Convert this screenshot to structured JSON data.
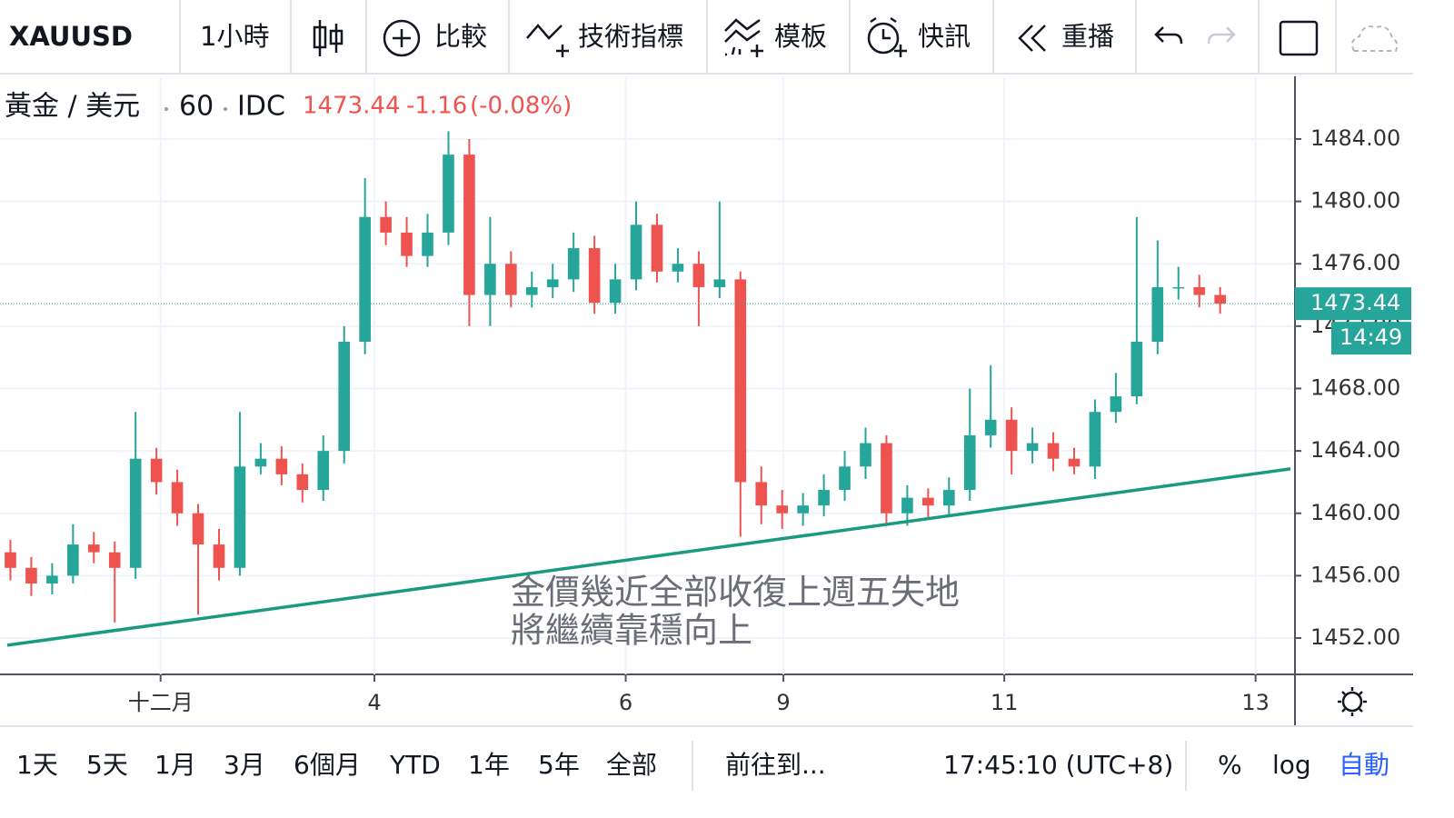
{
  "toolbar": {
    "symbol": "XAUUSD",
    "interval": "1小時",
    "buttons": [
      "比較",
      "技術指標",
      "模板",
      "快訊",
      "重播"
    ]
  },
  "chart_data": {
    "type": "candlestick",
    "title": "黃金 / 美元",
    "interval": "60",
    "exchange": "IDC",
    "last": 1473.44,
    "change": -1.16,
    "change_pct": {
      "value": -0.08,
      "label": "(-0.08%)"
    },
    "countdown": "14:49",
    "x": [
      0,
      1,
      2,
      3,
      4,
      5,
      6,
      7,
      8,
      9,
      10,
      11,
      12,
      13,
      14,
      15,
      16,
      17,
      18,
      19,
      20,
      21,
      22,
      23,
      24,
      25,
      26,
      27,
      28,
      29,
      30,
      31,
      32,
      33,
      34,
      35,
      36,
      37,
      38,
      39,
      40,
      41,
      42,
      43,
      44,
      45,
      46,
      47,
      48,
      49,
      50,
      51,
      52,
      53,
      54,
      55,
      56,
      57,
      58
    ],
    "open": [
      1457.5,
      1456.5,
      1455.5,
      1456,
      1458,
      1457.5,
      1456.5,
      1463.5,
      1462,
      1460,
      1458,
      1456.5,
      1463,
      1463.5,
      1462.5,
      1461.5,
      1464,
      1471,
      1479,
      1478,
      1476.5,
      1478,
      1483,
      1474,
      1476,
      1474,
      1474.5,
      1475,
      1477,
      1473.5,
      1475,
      1478.5,
      1475.5,
      1476,
      1474.5,
      1475,
      1462,
      1460.5,
      1460,
      1460.5,
      1461.5,
      1463,
      1464.5,
      1460,
      1461,
      1460.5,
      1461.5,
      1465,
      1466,
      1464,
      1464.5,
      1463.5,
      1463,
      1466.5,
      1467.5,
      1471,
      1474.5,
      1474.5,
      1474
    ],
    "high": [
      1458.3,
      1457.2,
      1456.8,
      1459.3,
      1458.8,
      1458.2,
      1466.5,
      1464.2,
      1462.8,
      1460.6,
      1459,
      1466.5,
      1464.5,
      1464.3,
      1463.2,
      1465,
      1472,
      1481.5,
      1480,
      1479,
      1479.2,
      1484.5,
      1484,
      1479,
      1476.8,
      1475.5,
      1476,
      1478,
      1477.8,
      1476,
      1480,
      1479.2,
      1477,
      1476.8,
      1480,
      1475.5,
      1463,
      1461.5,
      1461.3,
      1462.5,
      1464,
      1465.5,
      1465,
      1461.8,
      1461.6,
      1462.3,
      1468,
      1469.5,
      1466.8,
      1465.5,
      1465.2,
      1464.2,
      1467.3,
      1469,
      1479,
      1477.5,
      1475.8,
      1475.3,
      1474.5
    ],
    "low": [
      1455.7,
      1454.7,
      1454.8,
      1455.5,
      1456.8,
      1453,
      1455.8,
      1461.2,
      1459.2,
      1453.5,
      1455.7,
      1456,
      1462.5,
      1461.8,
      1460.7,
      1460.8,
      1463.2,
      1470.2,
      1477.2,
      1475.8,
      1475.8,
      1477.2,
      1472,
      1472,
      1473.2,
      1473.2,
      1473.8,
      1474.2,
      1472.8,
      1472.8,
      1474.3,
      1474.8,
      1474.8,
      1472,
      1473.8,
      1458.5,
      1459.3,
      1459,
      1459.2,
      1459.8,
      1460.8,
      1462.2,
      1459.2,
      1459.2,
      1459.7,
      1459.8,
      1460.8,
      1464.2,
      1462.5,
      1463.2,
      1462.7,
      1462.5,
      1462.2,
      1465.8,
      1467,
      1470.2,
      1473.7,
      1473.2,
      1472.8
    ],
    "close": [
      1456.5,
      1455.5,
      1456,
      1458,
      1457.5,
      1456.5,
      1463.5,
      1462,
      1460,
      1458,
      1456.5,
      1463,
      1463.5,
      1462.5,
      1461.5,
      1464,
      1471,
      1479,
      1478,
      1476.5,
      1478,
      1483,
      1474,
      1476,
      1474,
      1474.5,
      1475,
      1477,
      1473.5,
      1475,
      1478.5,
      1475.5,
      1476,
      1474.5,
      1475,
      1462,
      1460.5,
      1460,
      1460.5,
      1461.5,
      1463,
      1464.5,
      1460,
      1461,
      1460.5,
      1461.5,
      1465,
      1466,
      1464,
      1464.5,
      1463.5,
      1463,
      1466.5,
      1467.5,
      1471,
      1474.5,
      1474.5,
      1474,
      1473.44
    ],
    "up_color": "#26a69a",
    "down_color": "#ef5350",
    "xlim": [
      -0.5,
      61.5
    ],
    "xticks": [
      {
        "value": 7.2,
        "label": "十二月"
      },
      {
        "value": 17.45,
        "label": "4"
      },
      {
        "value": 29.5,
        "label": "6"
      },
      {
        "value": 37.06,
        "label": "9"
      },
      {
        "value": 47.65,
        "label": "11"
      },
      {
        "value": 59.7,
        "label": "13"
      }
    ],
    "ylim": [
      1449.67,
      1487.96
    ],
    "yticks": [
      {
        "value": 1452,
        "label": "1452.00"
      },
      {
        "value": 1456,
        "label": "1456.00"
      },
      {
        "value": 1460,
        "label": "1460.00"
      },
      {
        "value": 1464,
        "label": "1464.00"
      },
      {
        "value": 1468,
        "label": "1468.00"
      },
      {
        "value": 1472,
        "label": "1472.00"
      },
      {
        "value": 1476,
        "label": "1476.00"
      },
      {
        "value": 1480,
        "label": "1480.00"
      },
      {
        "value": 1484,
        "label": "1484.00"
      }
    ],
    "grid": true,
    "trendline": {
      "x": [
        -0.15,
        61.37
      ],
      "values": [
        1451.54,
        1462.85
      ],
      "color": "#1a9a80"
    },
    "annotation": [
      "金價幾近全部收復上週五失地",
      "將繼續靠穩向上"
    ]
  },
  "bottom_bar": {
    "ranges": [
      "1天",
      "5天",
      "1月",
      "3月",
      "6個月",
      "YTD",
      "1年",
      "5年",
      "全部"
    ],
    "goto": "前往到...",
    "clock": "17:45:10 (UTC+8)",
    "options": [
      "%",
      "log",
      "自動"
    ]
  }
}
